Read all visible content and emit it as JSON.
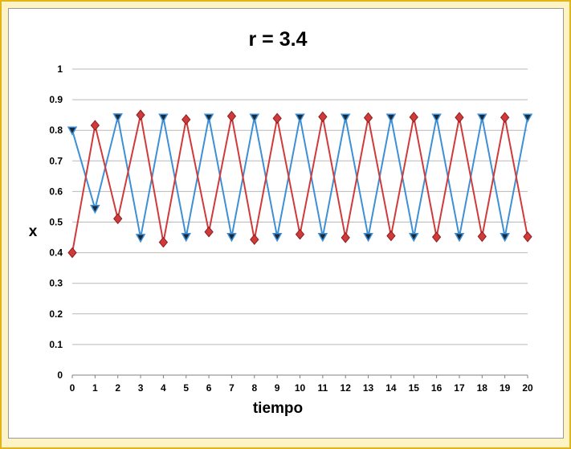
{
  "chart_data": {
    "type": "line",
    "title": "r = 3.4",
    "xlabel": "tiempo",
    "ylabel": "x",
    "x": [
      0,
      1,
      2,
      3,
      4,
      5,
      6,
      7,
      8,
      9,
      10,
      11,
      12,
      13,
      14,
      15,
      16,
      17,
      18,
      19,
      20
    ],
    "x_tick_labels": [
      "0",
      "1",
      "2",
      "3",
      "4",
      "5",
      "6",
      "7",
      "8",
      "9",
      "10",
      "11",
      "12",
      "13",
      "14",
      "15",
      "16",
      "17",
      "18",
      "19",
      "20"
    ],
    "y_tick_labels": [
      "0",
      "0.1",
      "0.2",
      "0.3",
      "0.4",
      "0.5",
      "0.6",
      "0.7",
      "0.8",
      "0.9",
      "1"
    ],
    "ylim": [
      0,
      1
    ],
    "grid": true,
    "legend": "none",
    "series": [
      {
        "color": "#3d8fd6",
        "marker": "triangle-down",
        "values": [
          0.8,
          0.544,
          0.843,
          0.449,
          0.842,
          0.452,
          0.842,
          0.452,
          0.842,
          0.452,
          0.842,
          0.452,
          0.842,
          0.452,
          0.842,
          0.452,
          0.842,
          0.452,
          0.842,
          0.452,
          0.842
        ]
      },
      {
        "color": "#d03a3a",
        "marker": "diamond",
        "values": [
          0.4,
          0.816,
          0.511,
          0.85,
          0.434,
          0.835,
          0.468,
          0.846,
          0.443,
          0.839,
          0.46,
          0.844,
          0.449,
          0.841,
          0.455,
          0.843,
          0.451,
          0.842,
          0.453,
          0.842,
          0.452
        ]
      }
    ]
  }
}
